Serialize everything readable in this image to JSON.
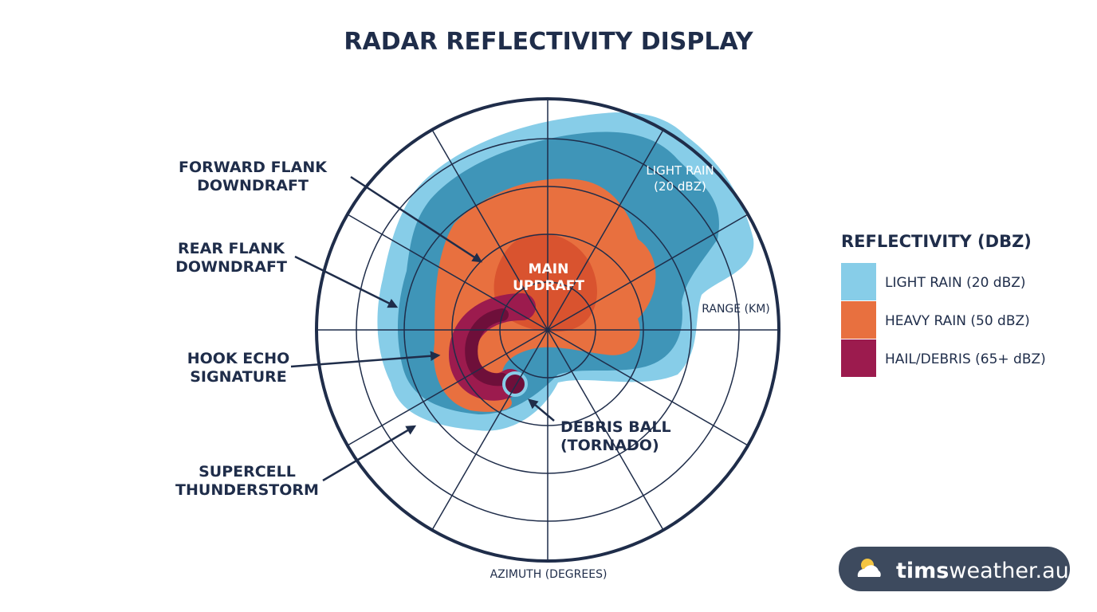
{
  "title": "RADAR REFLECTIVITY DISPLAY",
  "radar": {
    "main_updraft": [
      "MAIN",
      "UPDRAFT"
    ],
    "light_rain": [
      "LIGHT RAIN",
      "(20 dBZ)"
    ],
    "range": "RANGE (KM)",
    "azimuth": "AZIMUTH (DEGREES)"
  },
  "annotations": [
    {
      "lines": [
        "FORWARD FLANK",
        "DOWNDRAFT"
      ]
    },
    {
      "lines": [
        "REAR FLANK",
        "DOWNDRAFT"
      ]
    },
    {
      "lines": [
        "HOOK ECHO",
        "SIGNATURE"
      ]
    },
    {
      "lines": [
        "SUPERCELL",
        "THUNDERSTORM"
      ]
    },
    {
      "lines": [
        "DEBRIS BALL",
        "(TORNADO)"
      ]
    }
  ],
  "legend": {
    "title": "REFLECTIVITY (DBZ)",
    "items": [
      {
        "label": "LIGHT RAIN (20 dBZ)",
        "color": "#87cde8"
      },
      {
        "label": "HEAVY RAIN (50 dBZ)",
        "color": "#e8703f"
      },
      {
        "label": "HAIL/DEBRIS (65+ dBZ)",
        "color": "#9c1b4e"
      }
    ]
  },
  "logo": {
    "brand": "tims",
    "domain": "weather.au"
  }
}
